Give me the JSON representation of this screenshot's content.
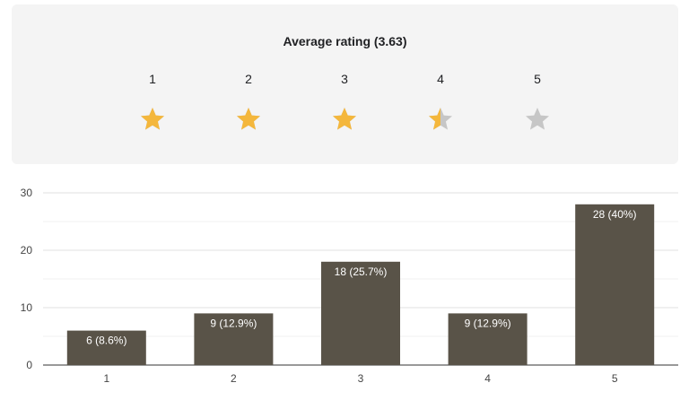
{
  "rating_panel": {
    "title": "Average rating (3.63)",
    "stars": [
      {
        "label": "1",
        "fill": 1
      },
      {
        "label": "2",
        "fill": 1
      },
      {
        "label": "3",
        "fill": 1
      },
      {
        "label": "4",
        "fill": 0.5
      },
      {
        "label": "5",
        "fill": 0
      }
    ],
    "star_color": "#f4b73c",
    "star_empty_color": "#c6c6c6"
  },
  "chart_data": {
    "type": "bar",
    "categories": [
      "1",
      "2",
      "3",
      "4",
      "5"
    ],
    "values": [
      6,
      9,
      18,
      9,
      28
    ],
    "data_labels": [
      "6 (8.6%)",
      "9 (12.9%)",
      "18 (25.7%)",
      "9 (12.9%)",
      "28 (40%)"
    ],
    "ylim": [
      0,
      30
    ],
    "yticks": [
      "0",
      "10",
      "20",
      "30"
    ],
    "grid": true,
    "bar_color": "#595348",
    "label_color": "#ffffff"
  }
}
